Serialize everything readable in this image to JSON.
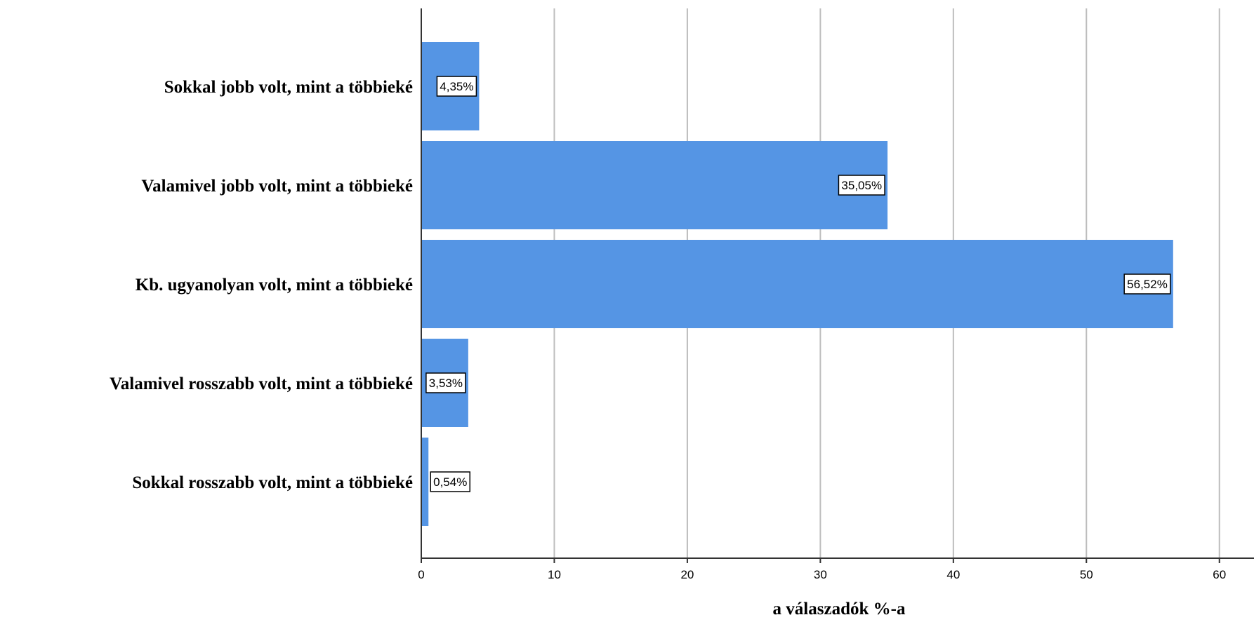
{
  "chart_data": {
    "type": "bar",
    "orientation": "horizontal",
    "categories": [
      "Sokkal jobb volt, mint a többieké",
      "Valamivel jobb volt, mint a többieké",
      "Kb. ugyanolyan volt, mint a többieké",
      "Valamivel rosszabb volt, mint a többieké",
      "Sokkal rosszabb volt, mint a többieké"
    ],
    "values": [
      4.35,
      35.05,
      56.52,
      3.53,
      0.54
    ],
    "data_labels": [
      "4,35%",
      "35,05%",
      "56,52%",
      "3,53%",
      "0,54%"
    ],
    "xlabel": "a válaszadók %-a",
    "ylabel": "",
    "xlim": [
      0,
      62.6
    ],
    "xticks": [
      0,
      10,
      20,
      30,
      40,
      50,
      60
    ],
    "xtick_labels": [
      "0",
      "10",
      "20",
      "30",
      "40",
      "50",
      "60"
    ],
    "grid": "vertical",
    "legend": "none",
    "colors": {
      "bar": "#5595e4",
      "grid": "#bdbdbd",
      "axis": "#333333"
    }
  }
}
